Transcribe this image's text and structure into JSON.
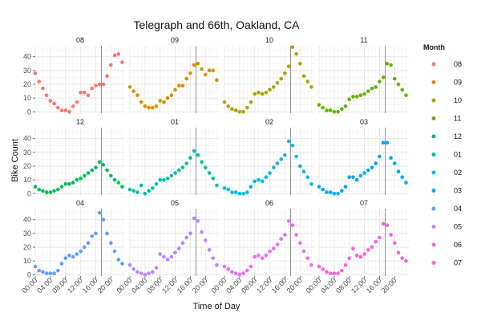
{
  "chart_data": {
    "type": "scatter",
    "title": "Telegraph and 66th, Oakland, CA",
    "xlabel": "Time of Day",
    "ylabel": "Bike Count",
    "x_ticks": [
      "00:00",
      "04:00",
      "08:00",
      "12:00",
      "16:00",
      "20:00"
    ],
    "x_tick_hours": [
      0,
      4,
      8,
      12,
      16,
      20
    ],
    "xlim": [
      0,
      23.75
    ],
    "ylim": [
      -1,
      48
    ],
    "y_ticks": [
      0,
      10,
      20,
      30,
      40
    ],
    "reference_line_hour": 17.5,
    "grid": true,
    "legend": {
      "title": "Month",
      "position": "right"
    },
    "x_hours": [
      0,
      1,
      2,
      3,
      4,
      5,
      6,
      7,
      8,
      9,
      10,
      11,
      12,
      13,
      14,
      15,
      16,
      17,
      18,
      19,
      20,
      21,
      22,
      23
    ],
    "panels": [
      {
        "month": "08",
        "color": "#F8766D",
        "values": [
          28,
          22,
          17,
          12,
          8,
          6,
          3,
          1,
          1,
          0,
          4,
          7,
          14,
          14,
          12,
          17,
          19,
          20,
          20,
          26,
          34,
          41,
          42,
          36
        ]
      },
      {
        "month": "09",
        "color": "#DB8E00",
        "values": [
          18,
          15,
          12,
          7,
          4,
          3,
          3,
          4,
          8,
          7,
          10,
          12,
          16,
          19,
          19,
          24,
          28,
          34,
          35,
          31,
          27,
          30,
          30,
          23
        ]
      },
      {
        "month": "10",
        "color": "#AEA200",
        "values": [
          7,
          4,
          2,
          1,
          0,
          0,
          3,
          7,
          13,
          14,
          13,
          14,
          16,
          18,
          21,
          24,
          28,
          33,
          47,
          42,
          35,
          26,
          22,
          18
        ]
      },
      {
        "month": "11",
        "color": "#64B200",
        "values": [
          5,
          3,
          1,
          1,
          0,
          0,
          2,
          4,
          9,
          11,
          11,
          12,
          13,
          15,
          17,
          18,
          22,
          25,
          35,
          34,
          24,
          20,
          16,
          12
        ]
      },
      {
        "month": "12",
        "color": "#00BD5C",
        "values": [
          5,
          3,
          2,
          1,
          1,
          2,
          3,
          5,
          7,
          7,
          8,
          10,
          11,
          13,
          15,
          17,
          19,
          23,
          21,
          17,
          13,
          10,
          8,
          5
        ]
      },
      {
        "month": "01",
        "color": "#00C1A7",
        "values": [
          3,
          2,
          1,
          6,
          0,
          2,
          4,
          7,
          10,
          10,
          11,
          13,
          15,
          17,
          19,
          22,
          26,
          31,
          28,
          23,
          19,
          15,
          11,
          6
        ]
      },
      {
        "month": "02",
        "color": "#00BADE",
        "values": [
          4,
          3,
          1,
          1,
          0,
          0,
          1,
          5,
          9,
          10,
          9,
          12,
          15,
          19,
          22,
          25,
          28,
          38,
          35,
          27,
          20,
          16,
          12,
          7
        ]
      },
      {
        "month": "03",
        "color": "#00A6FF",
        "values": [
          5,
          3,
          1,
          1,
          0,
          0,
          2,
          5,
          12,
          12,
          10,
          13,
          15,
          17,
          19,
          22,
          27,
          37,
          37,
          26,
          22,
          16,
          12,
          8
        ]
      },
      {
        "month": "04",
        "color": "#619CFF",
        "values": [
          6,
          3,
          2,
          1,
          1,
          1,
          3,
          8,
          12,
          14,
          13,
          15,
          17,
          20,
          23,
          28,
          30,
          45,
          40,
          30,
          23,
          17,
          11,
          8
        ]
      },
      {
        "month": "05",
        "color": "#B983FF",
        "values": [
          7,
          4,
          2,
          1,
          0,
          1,
          2,
          5,
          15,
          13,
          11,
          13,
          16,
          19,
          23,
          27,
          30,
          41,
          39,
          31,
          25,
          18,
          12,
          7
        ]
      },
      {
        "month": "06",
        "color": "#E76BF3",
        "values": [
          6,
          4,
          2,
          1,
          0,
          1,
          3,
          6,
          13,
          14,
          12,
          14,
          17,
          19,
          22,
          26,
          29,
          39,
          36,
          29,
          23,
          17,
          12,
          7
        ]
      },
      {
        "month": "07",
        "color": "#FD61D1",
        "values": [
          6,
          4,
          2,
          1,
          1,
          1,
          3,
          7,
          12,
          19,
          14,
          13,
          15,
          18,
          20,
          24,
          27,
          37,
          36,
          29,
          23,
          16,
          12,
          10
        ]
      }
    ]
  }
}
